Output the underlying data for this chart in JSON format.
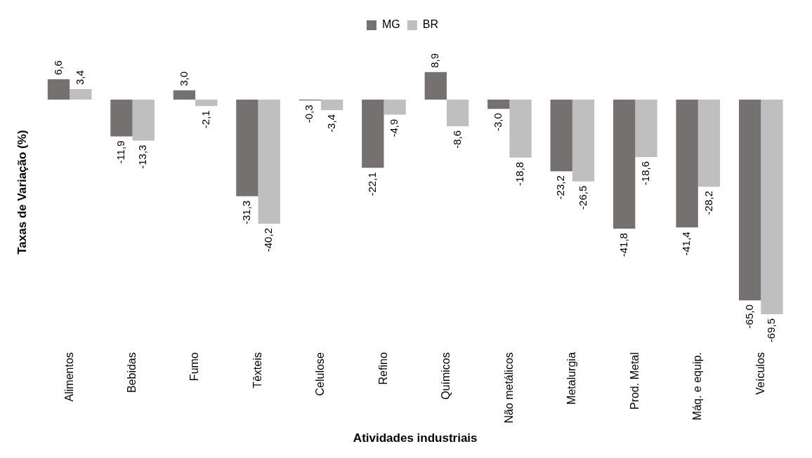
{
  "chart_data": {
    "type": "bar",
    "xlabel": "Atividades industriais",
    "ylabel": "Taxas de Variação (%)",
    "categories": [
      "Alimentos",
      "Bebidas",
      "Fumo",
      "Têxteis",
      "Celulose",
      "Refino",
      "Químicos",
      "Não metálicos",
      "Metalurgia",
      "Prod. Metal",
      "Máq. e equip.",
      "Veículos"
    ],
    "series": [
      {
        "name": "MG",
        "color": "#767171",
        "values": [
          6.6,
          -11.9,
          3.0,
          -31.3,
          -0.3,
          -22.1,
          8.9,
          -3.0,
          -23.2,
          -41.8,
          -41.4,
          -65.0
        ],
        "value_labels": [
          "6,6",
          "-11,9",
          "3,0",
          "-31,3",
          "-0,3",
          "-22,1",
          "8,9",
          "-3,0",
          "-23,2",
          "-41,8",
          "-41,4",
          "-65,0"
        ]
      },
      {
        "name": "BR",
        "color": "#bfbfbf",
        "values": [
          3.4,
          -13.3,
          -2.1,
          -40.2,
          -3.4,
          -4.9,
          -8.6,
          -18.8,
          -26.5,
          -18.6,
          -28.2,
          -69.5
        ],
        "value_labels": [
          "3,4",
          "-13,3",
          "-2,1",
          "-40,2",
          "-3,4",
          "-4,9",
          "-8,6",
          "-18,8",
          "-26,5",
          "-18,6",
          "-28,2",
          "-69,5"
        ]
      }
    ],
    "legend": "top",
    "grid": false
  }
}
